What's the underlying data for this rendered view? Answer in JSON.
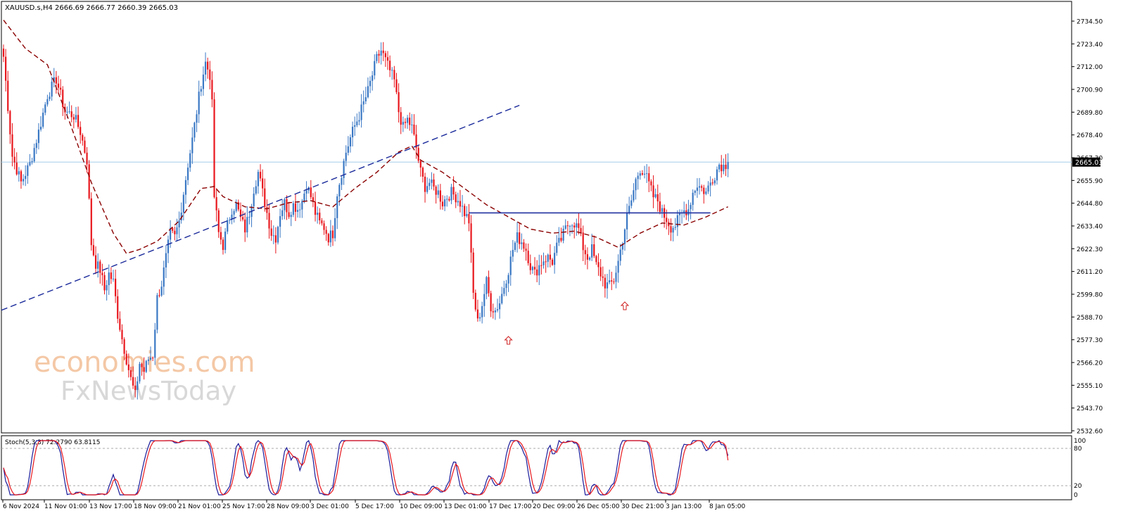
{
  "chart_data": [
    {
      "type": "candlestick",
      "header": "XAUUSD.s,H4  2666.69 2666.77 2660.39 2665.03",
      "current_price_label": "2665.03",
      "y_ticks": [
        "2734.50",
        "2723.40",
        "2712.00",
        "2700.90",
        "2689.80",
        "2678.40",
        "2667.30",
        "2655.90",
        "2644.80",
        "2633.40",
        "2622.30",
        "2611.20",
        "2599.80",
        "2588.70",
        "2577.30",
        "2566.20",
        "2555.10",
        "2543.70",
        "2532.60"
      ],
      "ylim": [
        2532.6,
        2740.0
      ],
      "x_ticks": [
        "6 Nov 2024",
        "11 Nov 01:00",
        "13 Nov 17:00",
        "18 Nov 09:00",
        "21 Nov 01:00",
        "25 Nov 17:00",
        "28 Nov 09:00",
        "3 Dec 01:00",
        "5 Dec 17:00",
        "10 Dec 09:00",
        "13 Dec 01:00",
        "17 Dec 17:00",
        "20 Dec 09:00",
        "26 Dec 05:00",
        "30 Dec 21:00",
        "3 Jan 13:00",
        "8 Jan 05:00"
      ],
      "close_path": [
        [
          0,
          2717
        ],
        [
          4,
          2668
        ],
        [
          8,
          2655
        ],
        [
          12,
          2664
        ],
        [
          16,
          2680
        ],
        [
          20,
          2698
        ],
        [
          24,
          2706
        ],
        [
          28,
          2690
        ],
        [
          32,
          2688
        ],
        [
          35,
          2680
        ],
        [
          38,
          2666
        ],
        [
          40,
          2625
        ],
        [
          42,
          2615
        ],
        [
          44,
          2612
        ],
        [
          46,
          2602
        ],
        [
          48,
          2610
        ],
        [
          50,
          2606
        ],
        [
          52,
          2590
        ],
        [
          54,
          2578
        ],
        [
          56,
          2568
        ],
        [
          58,
          2558
        ],
        [
          60,
          2550
        ],
        [
          62,
          2566
        ],
        [
          64,
          2562
        ],
        [
          66,
          2568
        ],
        [
          68,
          2570
        ],
        [
          70,
          2598
        ],
        [
          72,
          2605
        ],
        [
          74,
          2618
        ],
        [
          76,
          2630
        ],
        [
          78,
          2628
        ],
        [
          80,
          2636
        ],
        [
          82,
          2650
        ],
        [
          84,
          2664
        ],
        [
          86,
          2676
        ],
        [
          88,
          2690
        ],
        [
          90,
          2704
        ],
        [
          92,
          2714
        ],
        [
          94,
          2708
        ],
        [
          95,
          2693
        ],
        [
          96,
          2648
        ],
        [
          98,
          2630
        ],
        [
          100,
          2624
        ],
        [
          102,
          2634
        ],
        [
          104,
          2642
        ],
        [
          106,
          2644
        ],
        [
          108,
          2637
        ],
        [
          110,
          2632
        ],
        [
          112,
          2640
        ],
        [
          114,
          2652
        ],
        [
          116,
          2660
        ],
        [
          118,
          2650
        ],
        [
          120,
          2640
        ],
        [
          122,
          2630
        ],
        [
          124,
          2628
        ],
        [
          126,
          2640
        ],
        [
          128,
          2645
        ],
        [
          130,
          2640
        ],
        [
          132,
          2644
        ],
        [
          134,
          2642
        ],
        [
          136,
          2646
        ],
        [
          138,
          2654
        ],
        [
          140,
          2648
        ],
        [
          142,
          2640
        ],
        [
          144,
          2635
        ],
        [
          146,
          2633
        ],
        [
          148,
          2628
        ],
        [
          150,
          2630
        ],
        [
          152,
          2650
        ],
        [
          154,
          2660
        ],
        [
          156,
          2670
        ],
        [
          158,
          2677
        ],
        [
          160,
          2683
        ],
        [
          162,
          2688
        ],
        [
          164,
          2694
        ],
        [
          166,
          2700
        ],
        [
          168,
          2708
        ],
        [
          170,
          2716
        ],
        [
          172,
          2720
        ],
        [
          174,
          2715
        ],
        [
          176,
          2710
        ],
        [
          178,
          2705
        ],
        [
          180,
          2690
        ],
        [
          182,
          2682
        ],
        [
          184,
          2686
        ],
        [
          186,
          2682
        ],
        [
          188,
          2672
        ],
        [
          190,
          2660
        ],
        [
          192,
          2653
        ],
        [
          194,
          2655
        ],
        [
          196,
          2652
        ],
        [
          198,
          2650
        ],
        [
          200,
          2645
        ],
        [
          202,
          2648
        ],
        [
          204,
          2650
        ],
        [
          206,
          2648
        ],
        [
          208,
          2645
        ],
        [
          210,
          2640
        ],
        [
          212,
          2636
        ],
        [
          214,
          2600
        ],
        [
          216,
          2586
        ],
        [
          218,
          2595
        ],
        [
          220,
          2606
        ],
        [
          222,
          2594
        ],
        [
          224,
          2592
        ],
        [
          226,
          2596
        ],
        [
          228,
          2604
        ],
        [
          230,
          2612
        ],
        [
          232,
          2622
        ],
        [
          234,
          2628
        ],
        [
          236,
          2626
        ],
        [
          238,
          2622
        ],
        [
          240,
          2614
        ],
        [
          242,
          2610
        ],
        [
          244,
          2614
        ],
        [
          246,
          2617
        ],
        [
          248,
          2618
        ],
        [
          250,
          2616
        ],
        [
          252,
          2623
        ],
        [
          254,
          2627
        ],
        [
          256,
          2632
        ],
        [
          258,
          2636
        ],
        [
          260,
          2635
        ],
        [
          262,
          2632
        ],
        [
          264,
          2623
        ],
        [
          266,
          2618
        ],
        [
          268,
          2622
        ],
        [
          270,
          2614
        ],
        [
          272,
          2610
        ],
        [
          274,
          2605
        ],
        [
          276,
          2604
        ],
        [
          278,
          2607
        ],
        [
          280,
          2616
        ],
        [
          282,
          2627
        ],
        [
          284,
          2638
        ],
        [
          286,
          2646
        ],
        [
          288,
          2656
        ],
        [
          290,
          2662
        ],
        [
          292,
          2660
        ],
        [
          294,
          2654
        ],
        [
          296,
          2648
        ],
        [
          298,
          2646
        ],
        [
          300,
          2640
        ],
        [
          302,
          2637
        ],
        [
          304,
          2633
        ],
        [
          306,
          2634
        ],
        [
          308,
          2638
        ],
        [
          310,
          2641
        ],
        [
          312,
          2642
        ],
        [
          314,
          2650
        ],
        [
          316,
          2654
        ],
        [
          318,
          2652
        ],
        [
          320,
          2650
        ],
        [
          322,
          2655
        ],
        [
          324,
          2659
        ],
        [
          326,
          2664
        ],
        [
          328,
          2663
        ],
        [
          330,
          2665
        ]
      ],
      "ma_path": [
        [
          0,
          2735
        ],
        [
          10,
          2721
        ],
        [
          20,
          2713
        ],
        [
          30,
          2685
        ],
        [
          40,
          2655
        ],
        [
          50,
          2630
        ],
        [
          56,
          2620
        ],
        [
          62,
          2622
        ],
        [
          70,
          2626
        ],
        [
          80,
          2636
        ],
        [
          90,
          2652
        ],
        [
          96,
          2653
        ],
        [
          100,
          2648
        ],
        [
          110,
          2643
        ],
        [
          120,
          2642
        ],
        [
          130,
          2645
        ],
        [
          140,
          2646
        ],
        [
          150,
          2643
        ],
        [
          160,
          2652
        ],
        [
          170,
          2660
        ],
        [
          180,
          2670
        ],
        [
          186,
          2673
        ],
        [
          190,
          2666
        ],
        [
          200,
          2660
        ],
        [
          210,
          2652
        ],
        [
          220,
          2644
        ],
        [
          230,
          2638
        ],
        [
          240,
          2632
        ],
        [
          250,
          2630
        ],
        [
          260,
          2631
        ],
        [
          270,
          2628
        ],
        [
          280,
          2623
        ],
        [
          290,
          2630
        ],
        [
          300,
          2635
        ],
        [
          310,
          2634
        ],
        [
          320,
          2638
        ],
        [
          330,
          2643
        ]
      ],
      "trendline": {
        "from": {
          "i": 0,
          "price": 2592
        },
        "to": {
          "i": 235,
          "price": 2693
        }
      },
      "support_level": {
        "price": 2640,
        "from_i": 212,
        "to_i": 322
      },
      "arrows": [
        {
          "i": 230,
          "price": 2577
        },
        {
          "i": 283,
          "price": 2594
        }
      ],
      "stochastic": {
        "label": "Stoch(5,3,3) 72.2790 63.8115",
        "y_ticks": [
          "100",
          "80",
          "20",
          "0"
        ],
        "levels": [
          80,
          20
        ]
      },
      "watermark": [
        "economies.com",
        "FxNewsToday"
      ],
      "colors": {
        "bull": "#3a78c4",
        "bear": "#e8161c",
        "ma": "#8b0000",
        "trend": "#1a2a9a",
        "level": "#2030a0",
        "k": "#1a1a9a",
        "d": "#e8161c"
      }
    }
  ]
}
